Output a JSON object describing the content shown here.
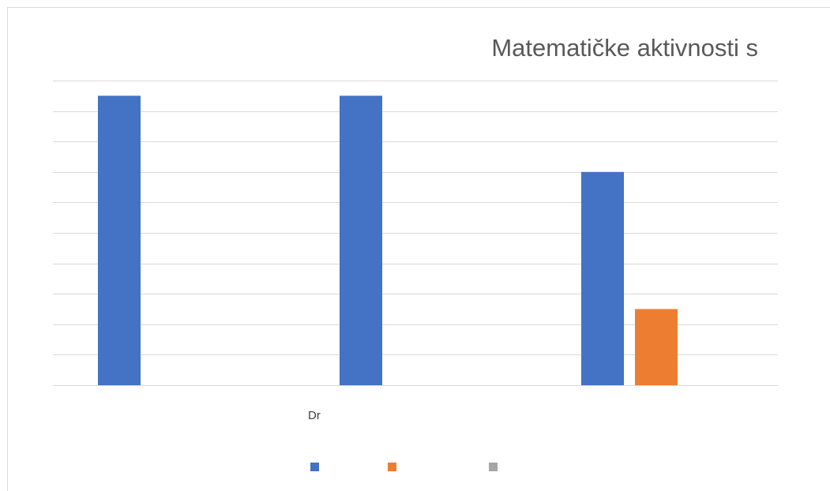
{
  "chart_data": {
    "type": "bar",
    "title": "Matematičke aktivnosti s",
    "xlabel": "Dr",
    "ylabel": "",
    "categories": [
      "",
      "",
      ""
    ],
    "ylim": [
      0,
      10
    ],
    "grid": true,
    "legend_position": "bottom",
    "series": [
      {
        "color": "#4472C4",
        "values": [
          9.5,
          9.5,
          7
        ]
      },
      {
        "color": "#ED7D31",
        "values": [
          0,
          0,
          2.5
        ]
      },
      {
        "color": "#A5A5A5",
        "values": [
          0,
          0,
          0
        ]
      }
    ]
  }
}
